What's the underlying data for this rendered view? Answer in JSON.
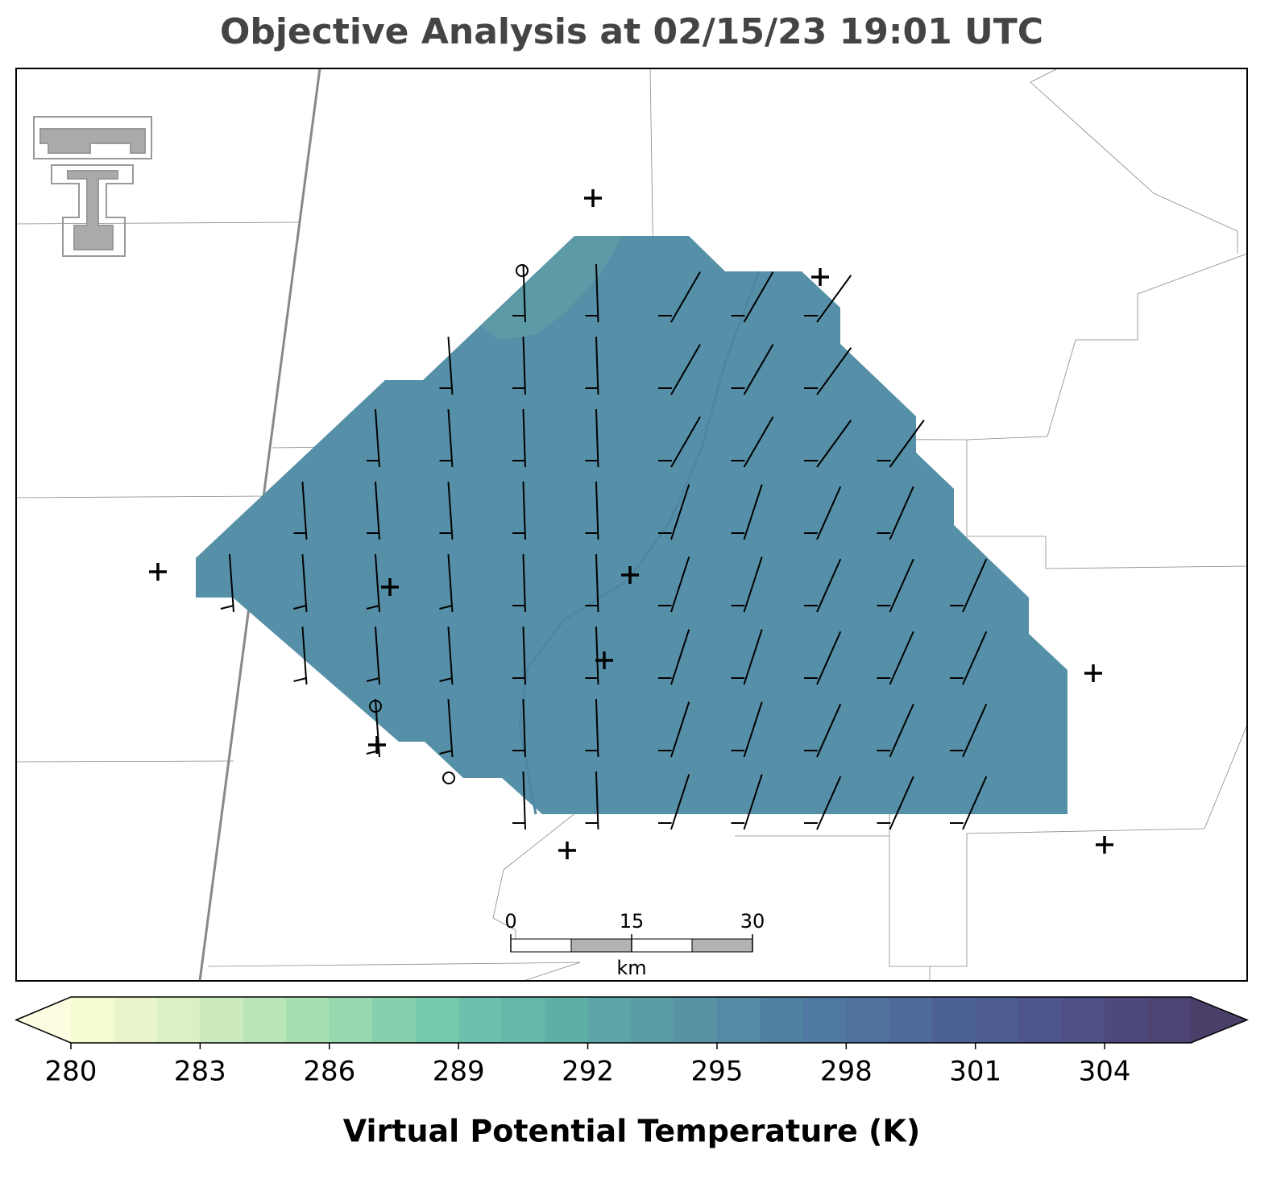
{
  "header": {
    "title": "Objective Analysis at 02/15/23 19:01 UTC"
  },
  "colorbar": {
    "label": "Virtual Potential Temperature (K)",
    "lim": [
      280,
      306
    ],
    "ticks": [
      280,
      283,
      286,
      289,
      292,
      295,
      298,
      301,
      304
    ],
    "color_stops": [
      "#fcfdd4",
      "#d6eec0",
      "#a3ddb0",
      "#72c8ad",
      "#5eaea8",
      "#5793a4",
      "#4f7aa0",
      "#4c6498",
      "#4f5189",
      "#4c4170"
    ],
    "under_color": "#fdfde2",
    "over_color": "#4a3f68"
  },
  "scale_bar": {
    "ticks": [
      0,
      15,
      30
    ],
    "unit": "km"
  }
}
